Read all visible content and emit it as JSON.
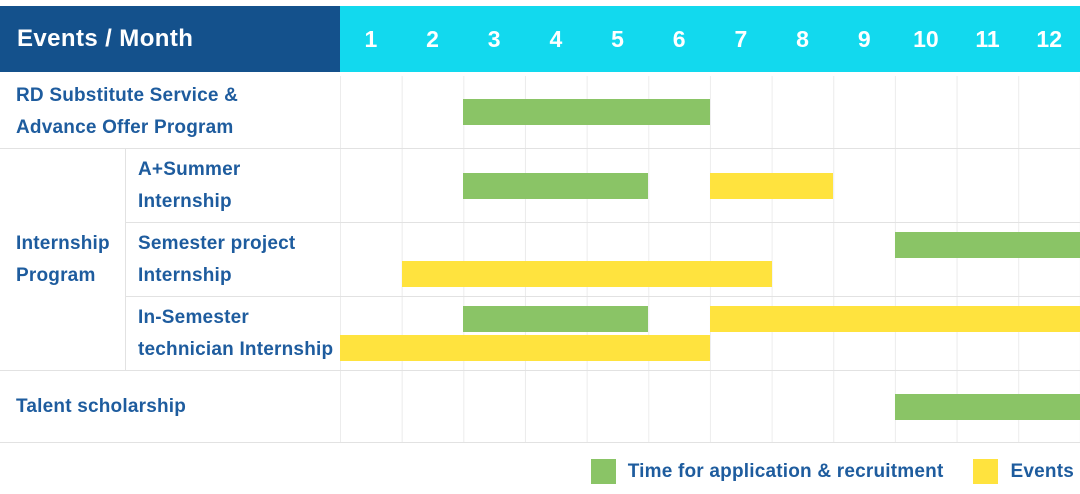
{
  "header": {
    "title": "Events / Month",
    "months": [
      "1",
      "2",
      "3",
      "4",
      "5",
      "6",
      "7",
      "8",
      "9",
      "10",
      "11",
      "12"
    ]
  },
  "legend": {
    "items": [
      {
        "label": "Time for application & recruitment",
        "type": "application"
      },
      {
        "label": "Events",
        "type": "event"
      }
    ]
  },
  "colors": {
    "title_header_bg": "#14518C",
    "month_header_bg": "#12D9EE",
    "header_text": "#FFFFFF",
    "label_text": "#1E5C9E",
    "application_green": "#8AC466",
    "event_yellow": "#FFE33E",
    "row_line": "#E2E2E2",
    "column_line": "#ECECEC"
  },
  "chart_data": {
    "type": "gantt",
    "title": "Events / Month",
    "x_axis": {
      "unit": "month",
      "ticks": [
        1,
        2,
        3,
        4,
        5,
        6,
        7,
        8,
        9,
        10,
        11,
        12
      ],
      "range": [
        1,
        12
      ]
    },
    "legend": [
      {
        "name": "Time for application & recruitment",
        "color": "#8AC466"
      },
      {
        "name": "Events",
        "color": "#FFE33E"
      }
    ],
    "group_label": "Internship Program",
    "group_label_lines": [
      "Internship",
      "Program"
    ],
    "rows": [
      {
        "group": null,
        "label": "RD Substitute Service & Advance Offer Program",
        "label_lines": [
          "RD Substitute Service &",
          "Advance Offer Program"
        ],
        "bars": [
          {
            "series": "Time for application & recruitment",
            "start_month": 3,
            "end_month": 6,
            "lane": "center"
          }
        ]
      },
      {
        "group": "Internship Program",
        "label": "A+Summer Internship",
        "label_lines": [
          "A+Summer",
          "Internship"
        ],
        "bars": [
          {
            "series": "Time for application & recruitment",
            "start_month": 3,
            "end_month": 5,
            "lane": "center"
          },
          {
            "series": "Events",
            "start_month": 7,
            "end_month": 8,
            "lane": "center"
          }
        ]
      },
      {
        "group": "Internship Program",
        "label": "Semester project Internship",
        "label_lines": [
          "Semester project",
          "Internship"
        ],
        "bars": [
          {
            "series": "Time for application & recruitment",
            "start_month": 10,
            "end_month": 12,
            "lane": "top"
          },
          {
            "series": "Events",
            "start_month": 2,
            "end_month": 7,
            "lane": "bottom"
          }
        ]
      },
      {
        "group": "Internship Program",
        "label": "In-Semester technician Internship",
        "label_lines": [
          "In-Semester",
          "technician Internship"
        ],
        "bars": [
          {
            "series": "Time for application & recruitment",
            "start_month": 3,
            "end_month": 5,
            "lane": "top"
          },
          {
            "series": "Events",
            "start_month": 7,
            "end_month": 12,
            "lane": "top"
          },
          {
            "series": "Events",
            "start_month": 1,
            "end_month": 6,
            "lane": "bottom"
          }
        ]
      },
      {
        "group": null,
        "label": "Talent scholarship",
        "label_lines": [
          "Talent scholarship"
        ],
        "bars": [
          {
            "series": "Time for application & recruitment",
            "start_month": 10,
            "end_month": 12,
            "lane": "center"
          }
        ]
      }
    ]
  }
}
